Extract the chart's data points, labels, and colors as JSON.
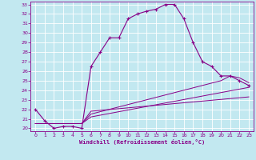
{
  "xlabel": "Windchill (Refroidissement éolien,°C)",
  "xlim": [
    -0.5,
    23.5
  ],
  "ylim": [
    19.7,
    33.3
  ],
  "yticks": [
    20,
    21,
    22,
    23,
    24,
    25,
    26,
    27,
    28,
    29,
    30,
    31,
    32,
    33
  ],
  "xticks": [
    0,
    1,
    2,
    3,
    4,
    5,
    6,
    7,
    8,
    9,
    10,
    11,
    12,
    13,
    14,
    15,
    16,
    17,
    18,
    19,
    20,
    21,
    22,
    23
  ],
  "background_color": "#c2e8f0",
  "line_color": "#880088",
  "grid_color": "#ffffff",
  "main_line": {
    "x": [
      0,
      1,
      2,
      3,
      4,
      5,
      6,
      7,
      8,
      9,
      10,
      11,
      12,
      13,
      14,
      15,
      16,
      17,
      18,
      19,
      20,
      21,
      22,
      23
    ],
    "y": [
      22.0,
      20.8,
      20.0,
      20.2,
      20.2,
      20.0,
      26.5,
      28.0,
      29.5,
      29.5,
      31.5,
      32.0,
      32.3,
      32.5,
      33.0,
      33.0,
      31.5,
      29.0,
      27.0,
      26.5,
      25.5,
      25.5,
      25.0,
      24.5
    ]
  },
  "aux_lines": [
    {
      "x": [
        0,
        5,
        6,
        23
      ],
      "y": [
        20.5,
        20.5,
        21.2,
        24.3
      ]
    },
    {
      "x": [
        0,
        5,
        6,
        20,
        21,
        22,
        23
      ],
      "y": [
        20.5,
        20.5,
        21.5,
        25.0,
        25.5,
        25.3,
        24.8
      ]
    },
    {
      "x": [
        0,
        5,
        6,
        23
      ],
      "y": [
        20.5,
        20.5,
        21.8,
        23.3
      ]
    }
  ]
}
